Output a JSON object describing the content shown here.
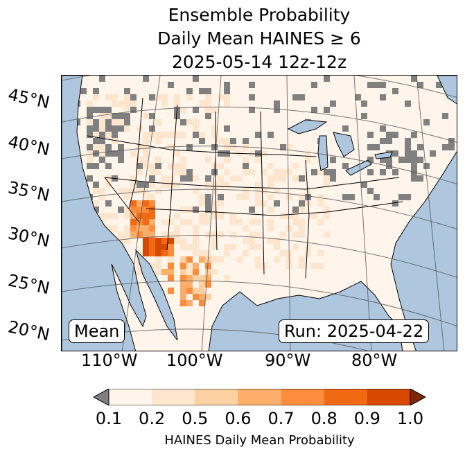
{
  "title": {
    "line1": "Ensemble Probability",
    "line2": "Daily Mean HAINES ≥ 6",
    "line3": "2025-05-14 12z-12z"
  },
  "map": {
    "lat_labels": [
      "45°N",
      "40°N",
      "35°N",
      "30°N",
      "25°N",
      "20°N"
    ],
    "lon_labels": [
      "110°W",
      "100°W",
      "90°W",
      "80°W"
    ],
    "mean_label": "Mean",
    "run_label": "Run: 2025-04-22",
    "colors": {
      "ocean": "#aec6de",
      "land": "#fff5eb",
      "missing": "#808080"
    }
  },
  "colorbar": {
    "ticks": [
      "0.1",
      "0.2",
      "0.5",
      "0.6",
      "0.7",
      "0.8",
      "0.9",
      "1.0"
    ],
    "label": "HAINES Daily Mean Probability",
    "colors": [
      "#fff5eb",
      "#fee6ce",
      "#fdd0a2",
      "#fdae6b",
      "#fd8d3c",
      "#f16913",
      "#d94801"
    ],
    "under_color": "#808080",
    "over_color": "#7f2704"
  }
}
